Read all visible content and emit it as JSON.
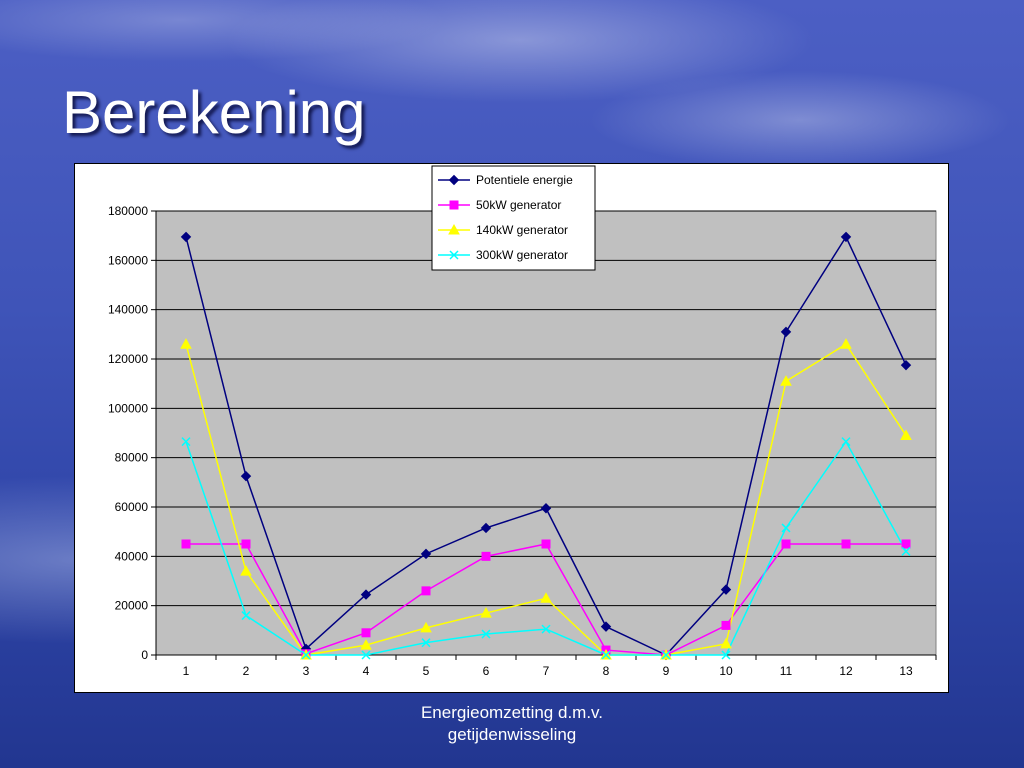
{
  "slide": {
    "title": "Berekening",
    "footer": [
      "Energieomzetting d.m.v.",
      "getijdenwisseling"
    ]
  },
  "chart_data": {
    "type": "line",
    "title": "",
    "xlabel": "",
    "ylabel": "",
    "categories": [
      "1",
      "2",
      "3",
      "4",
      "5",
      "6",
      "7",
      "8",
      "9",
      "10",
      "11",
      "12",
      "13"
    ],
    "ylim": [
      0,
      180000
    ],
    "yticks": [
      0,
      20000,
      40000,
      60000,
      80000,
      100000,
      120000,
      140000,
      160000,
      180000
    ],
    "grid": true,
    "legend_position": "top-right",
    "plot_background": "#c0c0c0",
    "series": [
      {
        "name": "Potentiele energie",
        "color": "#000080",
        "marker": "diamond",
        "values": [
          169500,
          72500,
          2500,
          24500,
          41000,
          51500,
          59500,
          11500,
          0,
          26500,
          131000,
          169500,
          117500
        ]
      },
      {
        "name": "50kW generator",
        "color": "#ff00ff",
        "marker": "square",
        "values": [
          45000,
          45000,
          500,
          9000,
          26000,
          40000,
          45000,
          2000,
          0,
          12000,
          45000,
          45000,
          45000
        ]
      },
      {
        "name": "140kW generator",
        "color": "#ffff00",
        "marker": "triangle",
        "values": [
          126000,
          34000,
          0,
          4000,
          11000,
          17000,
          23000,
          0,
          0,
          4500,
          111000,
          126000,
          89000
        ]
      },
      {
        "name": "300kW generator",
        "color": "#00ffff",
        "marker": "x",
        "values": [
          86500,
          16000,
          0,
          0,
          5000,
          8500,
          10500,
          0,
          0,
          0,
          51500,
          86500,
          42000
        ]
      }
    ]
  }
}
